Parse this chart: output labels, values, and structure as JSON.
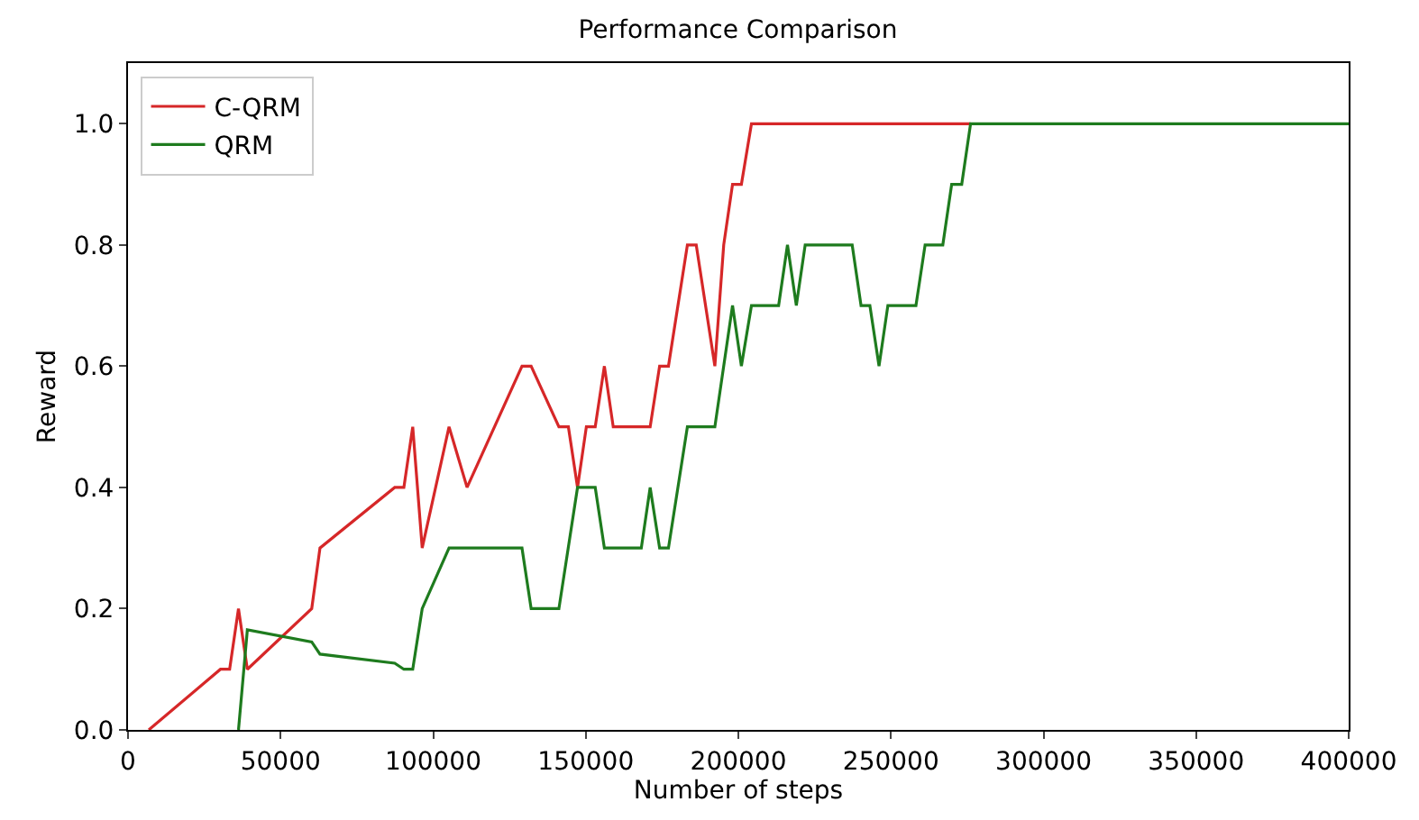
{
  "chart_data": {
    "type": "line",
    "title": "Performance Comparison",
    "xlabel": "Number of steps",
    "ylabel": "Reward",
    "series": [
      {
        "name": "C-QRM",
        "color": "#d62728",
        "x": [
          6800,
          30300,
          33300,
          36200,
          39100,
          60200,
          62900,
          87400,
          90400,
          93300,
          96400,
          105200,
          111100,
          129100,
          132100,
          141200,
          144300,
          147300,
          150200,
          153100,
          156100,
          159000,
          171100,
          174200,
          177100,
          183300,
          186200,
          192300,
          195200,
          198100,
          201000,
          204300,
          276100
        ],
        "values": [
          0,
          0.1,
          0.1,
          0.2,
          0.1,
          0.2,
          0.3,
          0.4,
          0.4,
          0.5,
          0.3,
          0.5,
          0.4,
          0.6,
          0.6,
          0.5,
          0.5,
          0.4,
          0.5,
          0.5,
          0.6,
          0.5,
          0.5,
          0.6,
          0.6,
          0.8,
          0.8,
          0.6,
          0.8,
          0.9,
          0.9,
          1.0,
          1.0
        ]
      },
      {
        "name": "QRM",
        "color": "#1e7b1e",
        "x": [
          36200,
          39100,
          60200,
          62900,
          87400,
          90400,
          93300,
          96400,
          105200,
          129100,
          132100,
          141200,
          147300,
          153100,
          156100,
          168200,
          171100,
          174200,
          177100,
          183300,
          192300,
          198100,
          201000,
          204300,
          213200,
          216100,
          219000,
          221900,
          237300,
          240200,
          243100,
          246100,
          249000,
          258200,
          261200,
          267000,
          269900,
          273200,
          276100,
          400000
        ],
        "values": [
          0,
          0.165,
          0.145,
          0.125,
          0.11,
          0.1,
          0.1,
          0.2,
          0.3,
          0.3,
          0.2,
          0.2,
          0.4,
          0.4,
          0.3,
          0.3,
          0.4,
          0.3,
          0.3,
          0.5,
          0.5,
          0.7,
          0.6,
          0.7,
          0.7,
          0.8,
          0.7,
          0.8,
          0.8,
          0.7,
          0.7,
          0.6,
          0.7,
          0.7,
          0.8,
          0.8,
          0.9,
          0.9,
          1.0,
          1.0
        ]
      }
    ],
    "xlim": [
      0,
      400000
    ],
    "xticks": [
      0,
      50000,
      100000,
      150000,
      200000,
      250000,
      300000,
      350000,
      400000
    ],
    "ylim": [
      0,
      1.1
    ],
    "yticks": [
      {
        "value": 0,
        "label": "0.0"
      },
      {
        "value": 0.2,
        "label": "0.2"
      },
      {
        "value": 0.4,
        "label": "0.4"
      },
      {
        "value": 0.6,
        "label": "0.6"
      },
      {
        "value": 0.8,
        "label": "0.8"
      },
      {
        "value": 1.0,
        "label": "1.0"
      }
    ],
    "legend": "top left",
    "marker": "none",
    "line_style": "solid"
  }
}
